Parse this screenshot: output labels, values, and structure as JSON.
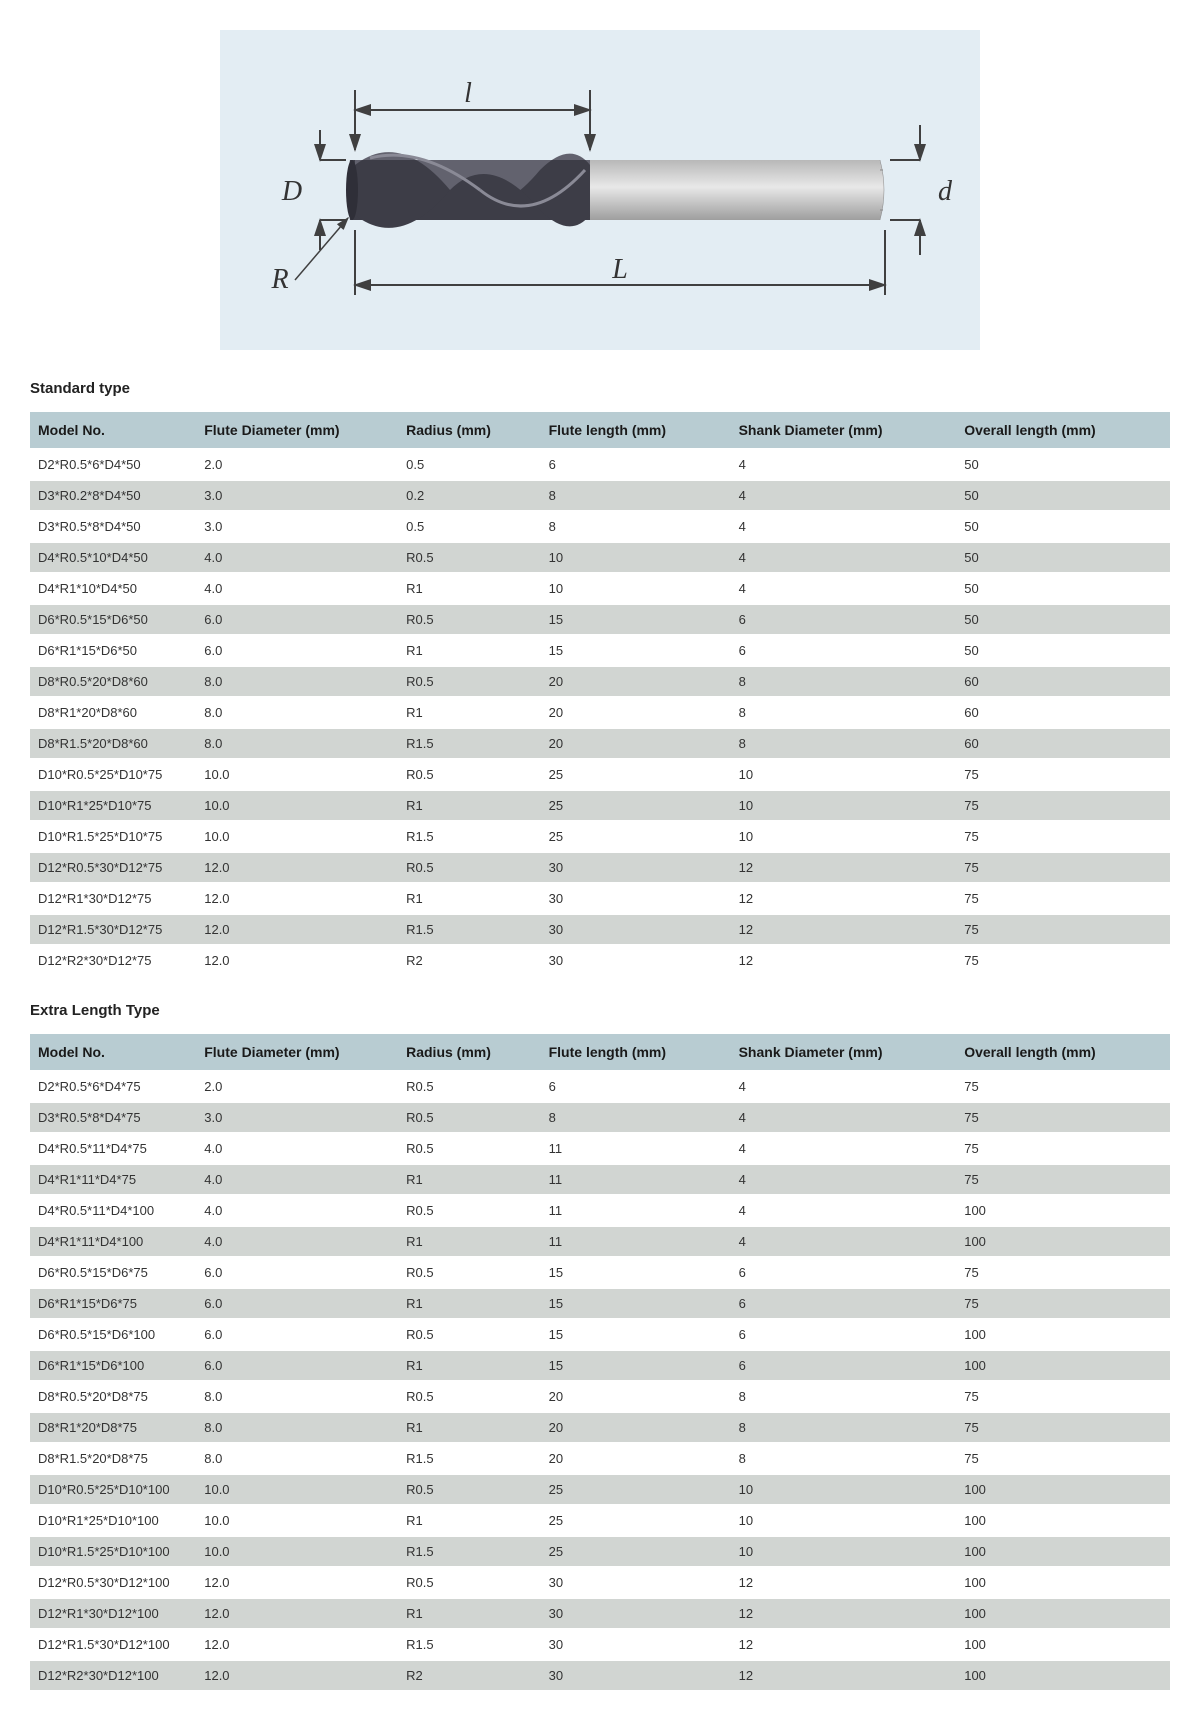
{
  "diagram": {
    "bg": "#e3edf3",
    "labels": {
      "D": "D",
      "R": "R",
      "l": "l",
      "L": "L",
      "d": "d"
    },
    "label_font": "italic 28px 'Times New Roman', serif",
    "label_color": "#333333",
    "arrow_color": "#404040",
    "flute_dark": "#3d3d47",
    "flute_light": "#62626e",
    "flute_highlight": "#8a8a96",
    "shank_gradient_top": "#b8b8b8",
    "shank_gradient_mid": "#e8e8e8",
    "shank_gradient_bot": "#9e9e9e"
  },
  "colors": {
    "header_bg": "#b8ccd2",
    "row_odd": "#ffffff",
    "row_even": "#d1d5d2"
  },
  "sections": {
    "standard": {
      "title": "Standard type"
    },
    "extra": {
      "title": "Extra Length Type"
    }
  },
  "columns": [
    "Model No.",
    "Flute Diameter (mm)",
    "Radius (mm)",
    "Flute length (mm)",
    "Shank Diameter (mm)",
    "Overall length (mm)"
  ],
  "standard_rows": [
    [
      "D2*R0.5*6*D4*50",
      "2.0",
      "0.5",
      "6",
      "4",
      "50"
    ],
    [
      "D3*R0.2*8*D4*50",
      "3.0",
      "0.2",
      "8",
      "4",
      "50"
    ],
    [
      "D3*R0.5*8*D4*50",
      "3.0",
      "0.5",
      "8",
      "4",
      "50"
    ],
    [
      "D4*R0.5*10*D4*50",
      "4.0",
      "R0.5",
      "10",
      "4",
      "50"
    ],
    [
      "D4*R1*10*D4*50",
      "4.0",
      "R1",
      "10",
      "4",
      "50"
    ],
    [
      "D6*R0.5*15*D6*50",
      "6.0",
      "R0.5",
      "15",
      "6",
      "50"
    ],
    [
      "D6*R1*15*D6*50",
      "6.0",
      "R1",
      "15",
      "6",
      "50"
    ],
    [
      "D8*R0.5*20*D8*60",
      "8.0",
      "R0.5",
      "20",
      "8",
      "60"
    ],
    [
      "D8*R1*20*D8*60",
      "8.0",
      "R1",
      "20",
      "8",
      "60"
    ],
    [
      "D8*R1.5*20*D8*60",
      "8.0",
      "R1.5",
      "20",
      "8",
      "60"
    ],
    [
      "D10*R0.5*25*D10*75",
      "10.0",
      "R0.5",
      "25",
      "10",
      "75"
    ],
    [
      "D10*R1*25*D10*75",
      "10.0",
      "R1",
      "25",
      "10",
      "75"
    ],
    [
      "D10*R1.5*25*D10*75",
      "10.0",
      "R1.5",
      "25",
      "10",
      "75"
    ],
    [
      "D12*R0.5*30*D12*75",
      "12.0",
      "R0.5",
      "30",
      "12",
      "75"
    ],
    [
      "D12*R1*30*D12*75",
      "12.0",
      "R1",
      "30",
      "12",
      "75"
    ],
    [
      "D12*R1.5*30*D12*75",
      "12.0",
      "R1.5",
      "30",
      "12",
      "75"
    ],
    [
      "D12*R2*30*D12*75",
      "12.0",
      "R2",
      "30",
      "12",
      "75"
    ]
  ],
  "extra_rows": [
    [
      "D2*R0.5*6*D4*75",
      "2.0",
      "R0.5",
      "6",
      "4",
      "75"
    ],
    [
      "D3*R0.5*8*D4*75",
      "3.0",
      "R0.5",
      "8",
      "4",
      "75"
    ],
    [
      "D4*R0.5*11*D4*75",
      "4.0",
      "R0.5",
      "11",
      "4",
      "75"
    ],
    [
      "D4*R1*11*D4*75",
      "4.0",
      "R1",
      "11",
      "4",
      "75"
    ],
    [
      "D4*R0.5*11*D4*100",
      "4.0",
      "R0.5",
      "11",
      "4",
      "100"
    ],
    [
      "D4*R1*11*D4*100",
      "4.0",
      "R1",
      "11",
      "4",
      "100"
    ],
    [
      "D6*R0.5*15*D6*75",
      "6.0",
      "R0.5",
      "15",
      "6",
      "75"
    ],
    [
      "D6*R1*15*D6*75",
      "6.0",
      "R1",
      "15",
      "6",
      "75"
    ],
    [
      "D6*R0.5*15*D6*100",
      "6.0",
      "R0.5",
      "15",
      "6",
      "100"
    ],
    [
      "D6*R1*15*D6*100",
      "6.0",
      "R1",
      "15",
      "6",
      "100"
    ],
    [
      "D8*R0.5*20*D8*75",
      "8.0",
      "R0.5",
      "20",
      "8",
      "75"
    ],
    [
      "D8*R1*20*D8*75",
      "8.0",
      "R1",
      "20",
      "8",
      "75"
    ],
    [
      "D8*R1.5*20*D8*75",
      "8.0",
      "R1.5",
      "20",
      "8",
      "75"
    ],
    [
      "D10*R0.5*25*D10*100",
      "10.0",
      "R0.5",
      "25",
      "10",
      "100"
    ],
    [
      "D10*R1*25*D10*100",
      "10.0",
      "R1",
      "25",
      "10",
      "100"
    ],
    [
      "D10*R1.5*25*D10*100",
      "10.0",
      "R1.5",
      "25",
      "10",
      "100"
    ],
    [
      "D12*R0.5*30*D12*100",
      "12.0",
      "R0.5",
      "30",
      "12",
      "100"
    ],
    [
      "D12*R1*30*D12*100",
      "12.0",
      "R1",
      "30",
      "12",
      "100"
    ],
    [
      "D12*R1.5*30*D12*100",
      "12.0",
      "R1.5",
      "30",
      "12",
      "100"
    ],
    [
      "D12*R2*30*D12*100",
      "12.0",
      "R2",
      "30",
      "12",
      "100"
    ]
  ]
}
